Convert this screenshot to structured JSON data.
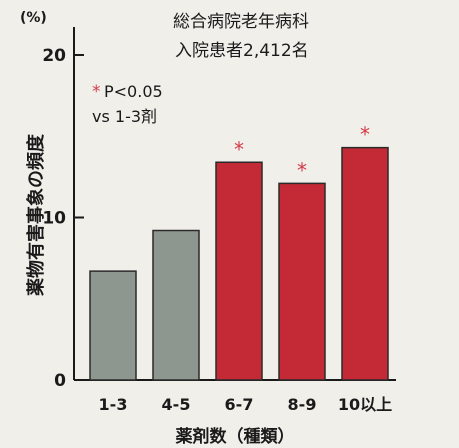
{
  "chart_data": {
    "type": "bar",
    "title": "総合病院老年病科",
    "subtitle": "入院患者2,412名",
    "xlabel": "薬剤数（種類）",
    "ylabel": "薬物有害事象の頻度",
    "yunit": "(%)",
    "categories": [
      "1-3",
      "4-5",
      "6-7",
      "8-9",
      "10以上"
    ],
    "values": [
      6.7,
      9.2,
      13.4,
      12.1,
      14.3
    ],
    "significant": [
      false,
      false,
      true,
      true,
      true
    ],
    "ylim": [
      0,
      20
    ],
    "yticks": [
      0,
      10,
      20
    ],
    "legend": {
      "marker": "*",
      "line1": "P<0.05",
      "line2": "vs 1-3剤"
    },
    "colors": {
      "reference": "#8e9690",
      "significant": "#c42a36",
      "asterisk": "#d43a48"
    }
  }
}
